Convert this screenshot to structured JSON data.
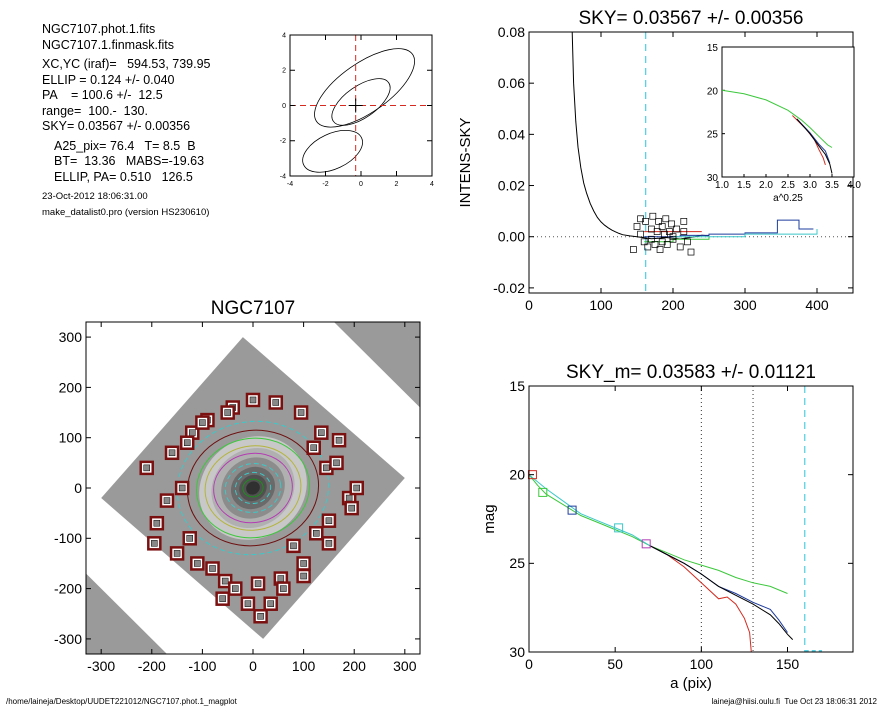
{
  "info": {
    "lines_a": [
      "NGC7107.phot.1.fits",
      "NGC7107.1.finmask.fits"
    ],
    "lines_b": [
      "XC,YC (iraf)=   594.53, 739.95",
      "ELLIP = 0.124 +/- 0.040",
      "PA    = 100.6 +/-  12.5",
      "range=  100.-  130.",
      "SKY= 0.03567 +/- 0.00356"
    ],
    "lines_c": [
      "A25_pix= 76.4   T= 8.5  B",
      "BT=  13.36   MABS=-19.63",
      "ELLIP, PA= 0.510   126.5"
    ],
    "lines_d": [
      "23-Oct-2012 18:06:31.00",
      "make_datalist0.pro (version HS230610)"
    ]
  },
  "footer": {
    "left": "/home/laineja/Desktop/UUDET221012/NGC7107.phot.1_magplot",
    "right": "laineja@hiisi.oulu.fi  Tue Oct 23 18:06:31 2012"
  },
  "chart_data": [
    {
      "id": "center",
      "type": "contour",
      "title": "",
      "xlabel": "",
      "ylabel": "",
      "xlim": [
        -4,
        4
      ],
      "ylim": [
        -4,
        4
      ],
      "xticks": [
        "-4",
        "-2",
        "0",
        "2",
        "4"
      ],
      "yticks": [
        "-4",
        "-2",
        "0",
        "2",
        "4"
      ],
      "contours": [
        {
          "cx": 0.2,
          "cy": 1.0,
          "rx": 3.3,
          "ry": 1.4,
          "angle": 35
        },
        {
          "cx": 0.0,
          "cy": 0.2,
          "rx": 1.9,
          "ry": 0.9,
          "angle": 35
        },
        {
          "cx": -1.6,
          "cy": -2.6,
          "rx": 1.8,
          "ry": 1.0,
          "angle": 25
        }
      ],
      "crosshair": {
        "x": -0.3,
        "y": 0
      },
      "plus": {
        "x": -0.3,
        "y": 0
      }
    },
    {
      "id": "sky",
      "type": "line",
      "title": "SKY= 0.03567 +/- 0.00356",
      "xlabel": "",
      "ylabel": "INTENS-SKY",
      "xlim": [
        0,
        450
      ],
      "ylim": [
        -0.022,
        0.08
      ],
      "xticks": [
        "0",
        "100",
        "200",
        "300",
        "400"
      ],
      "yticks": [
        "-0.02",
        "0.00",
        "0.02",
        "0.04",
        "0.06",
        "0.08"
      ],
      "vline": 162,
      "profile_x": [
        60,
        62,
        65,
        68,
        72,
        76,
        80,
        85,
        90,
        95,
        100,
        105,
        110,
        115,
        120,
        125,
        130,
        140,
        150,
        160,
        170,
        180,
        190,
        200,
        210,
        220,
        230,
        240,
        250
      ],
      "profile_y": [
        0.08,
        0.06,
        0.045,
        0.035,
        0.027,
        0.021,
        0.017,
        0.013,
        0.01,
        0.0075,
        0.0058,
        0.0045,
        0.0035,
        0.0026,
        0.0019,
        0.0013,
        0.0008,
        0.0003,
        0.0,
        -0.0004,
        -0.0008,
        -0.0006,
        -0.0003,
        -0.0006,
        -0.0009,
        -0.0004,
        0.0,
        0.0006,
        0.0004
      ],
      "steps": [
        {
          "color": "#1e3c9e",
          "x": [
            160,
            210,
            250,
            300,
            340,
            345,
            370,
            375,
            395
          ],
          "y": [
            0.0,
            0.0005,
            0.001,
            0.0015,
            0.0015,
            0.0065,
            0.0065,
            0.003,
            0.003
          ]
        },
        {
          "color": "#d42a1f",
          "x": [
            160,
            240
          ],
          "y": [
            0.002,
            0.002
          ]
        },
        {
          "color": "#3cc83c",
          "x": [
            160,
            200,
            250
          ],
          "y": [
            -0.002,
            -0.001,
            0.0
          ]
        },
        {
          "color": "#3cc8c8",
          "x": [
            200,
            300,
            400
          ],
          "y": [
            0.0,
            0.001,
            0.003
          ]
        }
      ],
      "squares_x": [
        145,
        150,
        155,
        160,
        162,
        165,
        170,
        172,
        175,
        178,
        180,
        182,
        185,
        188,
        190,
        192,
        195,
        198,
        200,
        205,
        210,
        215,
        220,
        225,
        155,
        170,
        185,
        200,
        215
      ],
      "squares_y": [
        -0.005,
        0.004,
        0.007,
        -0.002,
        0.006,
        -0.004,
        0.003,
        0.008,
        -0.003,
        0.002,
        0.006,
        -0.005,
        0.004,
        0.001,
        0.007,
        -0.003,
        0.002,
        0.005,
        -0.001,
        0.003,
        -0.004,
        0.006,
        -0.002,
        -0.006,
        0.001,
        -0.001,
        -0.002,
        0.0,
        0.002
      ],
      "inset": {
        "xlabel": "a^0.25",
        "xlim": [
          1.0,
          4.0
        ],
        "ylim": [
          15,
          30
        ],
        "xticks": [
          "1.0",
          "1.5",
          "2.0",
          "2.5",
          "3.0",
          "3.5",
          "4.0"
        ],
        "yticks": [
          "15",
          "20",
          "25",
          "30"
        ],
        "series": [
          {
            "color": "#3cc83c",
            "x": [
              1.0,
              1.5,
              2.0,
              2.5,
              2.8,
              3.0,
              3.2,
              3.4,
              3.5
            ],
            "y": [
              20.0,
              20.4,
              21.1,
              22.3,
              23.4,
              24.3,
              25.3,
              26.3,
              26.6
            ]
          },
          {
            "color": "#d42a1f",
            "x": [
              2.6,
              2.9,
              3.1,
              3.2,
              3.3,
              3.35
            ],
            "y": [
              22.9,
              24.4,
              25.7,
              26.8,
              27.8,
              28.6
            ]
          },
          {
            "color": "#1e3c9e",
            "x": [
              2.7,
              3.0,
              3.2,
              3.35,
              3.45
            ],
            "y": [
              23.3,
              24.9,
              26.2,
              27.0,
              28.4
            ]
          },
          {
            "color": "#000000",
            "x": [
              2.7,
              3.0,
              3.2,
              3.35,
              3.45,
              3.5
            ],
            "y": [
              23.3,
              25.0,
              26.4,
              27.4,
              28.5,
              29.6
            ]
          }
        ]
      }
    },
    {
      "id": "image",
      "type": "image",
      "title": "NGC7107",
      "xlabel": "",
      "ylabel": "",
      "xlim": [
        -330,
        330
      ],
      "ylim": [
        -330,
        330
      ],
      "xticks": [
        "-300",
        "-200",
        "-100",
        "0",
        "100",
        "200",
        "300"
      ],
      "yticks": [
        "-300",
        "-200",
        "-100",
        "0",
        "100",
        "200",
        "300"
      ],
      "ellipses": [
        {
          "r": 150,
          "color": "#3cc8c8"
        },
        {
          "r": 130,
          "color": "#6e1010"
        },
        {
          "r": 112,
          "color": "#3cc83c"
        },
        {
          "r": 95,
          "color": "#b4b43c"
        },
        {
          "r": 78,
          "color": "#b43cb4"
        },
        {
          "r": 55,
          "color": "#3cc8c8"
        },
        {
          "r": 35,
          "color": "#3cc8c8"
        },
        {
          "r": 20,
          "color": "#1e8c1e"
        }
      ],
      "squares_x": [
        -170,
        -120,
        -90,
        -40,
        0,
        45,
        95,
        135,
        170,
        -190,
        -210,
        190,
        205,
        -110,
        -55,
        55,
        100,
        150,
        -195,
        -150,
        150,
        195,
        -160,
        -140,
        145,
        165,
        -125,
        125,
        -100,
        100,
        -60,
        60,
        -10,
        10,
        15,
        -35,
        35,
        -80,
        80,
        -130,
        120,
        -50
      ],
      "squares_y": [
        -25,
        110,
        135,
        160,
        175,
        170,
        150,
        110,
        95,
        -70,
        40,
        -20,
        0,
        -150,
        -185,
        -180,
        -150,
        -110,
        -110,
        -130,
        -65,
        -40,
        70,
        0,
        40,
        50,
        -100,
        -90,
        130,
        -175,
        -220,
        -200,
        -230,
        -190,
        -255,
        -200,
        -230,
        -160,
        -115,
        90,
        80,
        150
      ]
    },
    {
      "id": "mag",
      "type": "line",
      "title": "SKY_m=  0.03583 +/- 0.01121",
      "xlabel": "a (pix)",
      "ylabel": "mag",
      "xlim": [
        0,
        188
      ],
      "ylim": [
        15,
        30
      ],
      "xticks": [
        "0",
        "50",
        "100",
        "150"
      ],
      "yticks": [
        "15",
        "20",
        "25",
        "30"
      ],
      "vlines_dotted": [
        100,
        130
      ],
      "vline_dashed": 160,
      "series": [
        {
          "color": "#3cc83c",
          "x": [
            0,
            5,
            10,
            20,
            30,
            40,
            50,
            60,
            70,
            80,
            90,
            100,
            110,
            120,
            130,
            140,
            150
          ],
          "y": [
            20.0,
            20.6,
            21.1,
            21.7,
            22.3,
            22.7,
            23.1,
            23.5,
            24.0,
            24.4,
            24.8,
            25.1,
            25.4,
            25.8,
            26.1,
            26.3,
            26.7
          ]
        },
        {
          "color": "#d42a1f",
          "x": [
            70,
            80,
            90,
            100,
            110,
            115,
            120,
            125,
            128,
            129
          ],
          "y": [
            24.0,
            24.5,
            25.2,
            26.1,
            27.0,
            26.9,
            27.3,
            28.1,
            28.9,
            30.0
          ]
        },
        {
          "color": "#1e3c9e",
          "x": [
            70,
            80,
            90,
            100,
            110,
            120,
            130,
            140,
            145,
            150
          ],
          "y": [
            24.0,
            24.5,
            25.0,
            25.6,
            26.3,
            26.7,
            27.2,
            27.6,
            28.2,
            28.9
          ]
        },
        {
          "color": "#000000",
          "x": [
            70,
            80,
            90,
            100,
            110,
            120,
            130,
            140,
            145,
            150,
            153
          ],
          "y": [
            24.0,
            24.5,
            25.0,
            25.6,
            26.3,
            26.8,
            27.3,
            27.9,
            28.4,
            29.0,
            29.3
          ]
        },
        {
          "color": "#3cc8c8",
          "x": [
            0,
            10,
            20,
            30,
            40,
            50,
            60,
            70
          ],
          "y": [
            20.0,
            20.8,
            21.5,
            22.2,
            22.6,
            23.0,
            23.4,
            24.0
          ]
        }
      ],
      "markers": [
        {
          "x": 2,
          "y": 20.0,
          "color": "#d42a1f"
        },
        {
          "x": 8,
          "y": 21.0,
          "color": "#3cc83c"
        },
        {
          "x": 25,
          "y": 22.0,
          "color": "#1e3c9e"
        },
        {
          "x": 52,
          "y": 23.0,
          "color": "#3cc8c8"
        },
        {
          "x": 68,
          "y": 23.9,
          "color": "#b43cb4"
        }
      ]
    }
  ]
}
